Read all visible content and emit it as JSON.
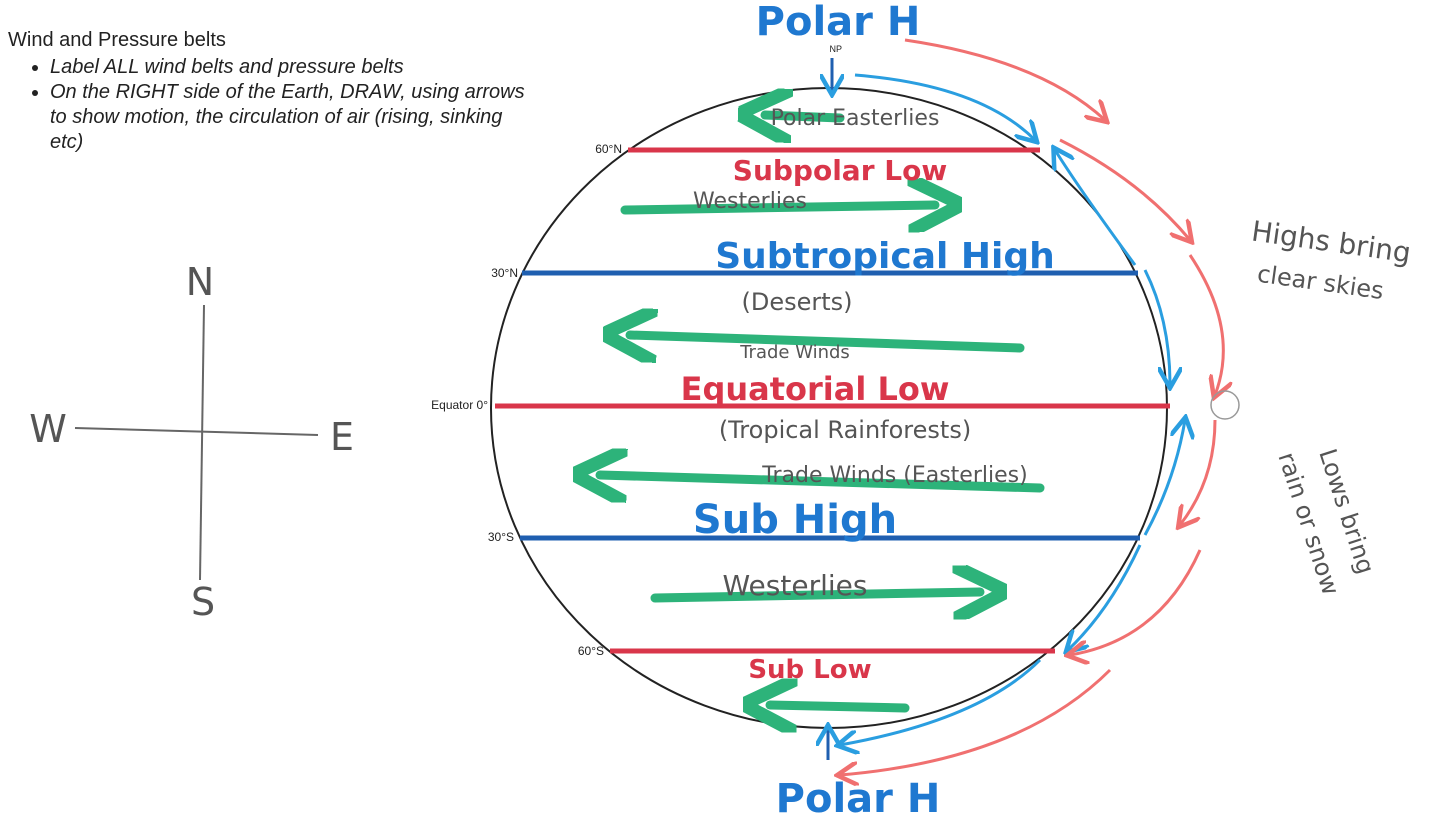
{
  "instructions": {
    "title": "Wind and Pressure belts",
    "bullets": [
      "Label ALL wind belts and pressure belts",
      "On the RIGHT side of the Earth, DRAW, using arrows to show motion, the circulation of air (rising, sinking etc)"
    ]
  },
  "compass": {
    "north": "N",
    "south": "S",
    "west": "W",
    "east": "E"
  },
  "latitudes": [
    "60°N",
    "30°N",
    "Equator 0°",
    "30°S",
    "60°S"
  ],
  "pole_marker": "NP",
  "pressure_belts": [
    "Polar H",
    "Subpolar Low",
    "Subtropical High",
    "Equatorial Low",
    "Sub High",
    "Sub Low",
    "Polar H"
  ],
  "wind_belts": [
    "Polar Easterlies",
    "Westerlies",
    "Trade Winds",
    "Trade Winds (Easterlies)",
    "Westerlies"
  ],
  "climate_notes": [
    "(Deserts)",
    "(Tropical Rainforests)"
  ],
  "side_notes": [
    {
      "lines": [
        "Highs bring",
        "clear skies"
      ]
    },
    {
      "lines": [
        "Lows bring",
        "rain or snow"
      ]
    }
  ]
}
